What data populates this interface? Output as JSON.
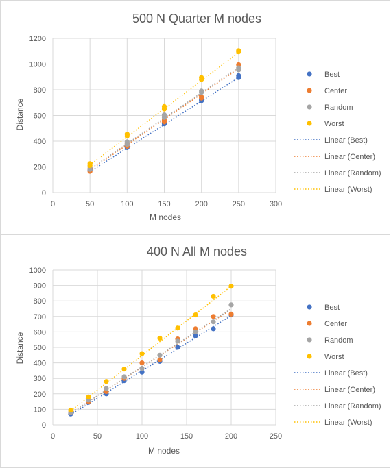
{
  "colors": {
    "best": "#4472c4",
    "center": "#ed7d31",
    "random": "#a5a5a5",
    "worst": "#ffc000",
    "grid": "#d9d9d9",
    "text": "#595959"
  },
  "chart_data": [
    {
      "type": "scatter",
      "title": "500 N Quarter M nodes",
      "xlabel": "M nodes",
      "ylabel": "Distance",
      "xlim": [
        0,
        300
      ],
      "ylim": [
        0,
        1200
      ],
      "xticks": [
        0,
        50,
        100,
        150,
        200,
        250,
        300
      ],
      "yticks": [
        0,
        200,
        400,
        600,
        800,
        1000,
        1200
      ],
      "grid": true,
      "legend_position": "right",
      "legend": [
        "Best",
        "Center",
        "Random",
        "Worst",
        "Linear (Best)",
        "Linear (Center)",
        "Linear (Random)",
        "Linear (Worst)"
      ],
      "series": [
        {
          "name": "Best",
          "color": "best",
          "points": [
            [
              50,
              170
            ],
            [
              50,
              180
            ],
            [
              100,
              350
            ],
            [
              100,
              360
            ],
            [
              150,
              535
            ],
            [
              150,
              545
            ],
            [
              200,
              715
            ],
            [
              200,
              725
            ],
            [
              250,
              895
            ],
            [
              250,
              910
            ]
          ],
          "trend": [
            [
              50,
              163
            ],
            [
              250,
              895
            ]
          ]
        },
        {
          "name": "Center",
          "color": "center",
          "points": [
            [
              50,
              165
            ],
            [
              50,
              185
            ],
            [
              100,
              360
            ],
            [
              100,
              380
            ],
            [
              150,
              550
            ],
            [
              150,
              565
            ],
            [
              200,
              735
            ],
            [
              200,
              745
            ],
            [
              250,
              960
            ],
            [
              250,
              995
            ]
          ],
          "trend": [
            [
              50,
              175
            ],
            [
              250,
              965
            ]
          ]
        },
        {
          "name": "Random",
          "color": "random",
          "points": [
            [
              50,
              180
            ],
            [
              50,
              200
            ],
            [
              100,
              375
            ],
            [
              100,
              395
            ],
            [
              150,
              585
            ],
            [
              150,
              605
            ],
            [
              200,
              780
            ],
            [
              200,
              790
            ],
            [
              250,
              955
            ],
            [
              250,
              970
            ]
          ],
          "trend": [
            [
              50,
              183
            ],
            [
              250,
              975
            ]
          ]
        },
        {
          "name": "Worst",
          "color": "worst",
          "points": [
            [
              50,
              210
            ],
            [
              50,
              225
            ],
            [
              100,
              440
            ],
            [
              100,
              455
            ],
            [
              150,
              650
            ],
            [
              150,
              670
            ],
            [
              200,
              880
            ],
            [
              200,
              895
            ],
            [
              250,
              1095
            ],
            [
              250,
              1105
            ]
          ],
          "trend": [
            [
              50,
              215
            ],
            [
              250,
              1090
            ]
          ]
        }
      ]
    },
    {
      "type": "scatter",
      "title": "400 N All M nodes",
      "xlabel": "M nodes",
      "ylabel": "Distance",
      "xlim": [
        0,
        250
      ],
      "ylim": [
        0,
        1000
      ],
      "xticks": [
        0,
        50,
        100,
        150,
        200,
        250
      ],
      "yticks": [
        0,
        100,
        200,
        300,
        400,
        500,
        600,
        700,
        800,
        900,
        1000
      ],
      "grid": true,
      "legend_position": "right",
      "legend": [
        "Best",
        "Center",
        "Random",
        "Worst",
        "Linear (Best)",
        "Linear (Center)",
        "Linear (Random)",
        "Linear (Worst)"
      ],
      "series": [
        {
          "name": "Best",
          "color": "best",
          "points": [
            [
              20,
              70
            ],
            [
              40,
              145
            ],
            [
              60,
              200
            ],
            [
              80,
              285
            ],
            [
              100,
              340
            ],
            [
              120,
              410
            ],
            [
              140,
              500
            ],
            [
              160,
              575
            ],
            [
              180,
              620
            ],
            [
              200,
              710
            ]
          ],
          "trend": [
            [
              20,
              65
            ],
            [
              200,
              705
            ]
          ]
        },
        {
          "name": "Center",
          "color": "center",
          "points": [
            [
              20,
              80
            ],
            [
              40,
              150
            ],
            [
              60,
              215
            ],
            [
              80,
              300
            ],
            [
              100,
              400
            ],
            [
              120,
              420
            ],
            [
              140,
              555
            ],
            [
              160,
              620
            ],
            [
              180,
              700
            ],
            [
              200,
              715
            ]
          ],
          "trend": [
            [
              20,
              75
            ],
            [
              200,
              745
            ]
          ]
        },
        {
          "name": "Random",
          "color": "random",
          "points": [
            [
              20,
              80
            ],
            [
              40,
              160
            ],
            [
              60,
              235
            ],
            [
              80,
              310
            ],
            [
              100,
              365
            ],
            [
              120,
              450
            ],
            [
              140,
              540
            ],
            [
              160,
              600
            ],
            [
              180,
              665
            ],
            [
              200,
              775
            ]
          ],
          "trend": [
            [
              20,
              75
            ],
            [
              200,
              750
            ]
          ]
        },
        {
          "name": "Worst",
          "color": "worst",
          "points": [
            [
              20,
              95
            ],
            [
              40,
              180
            ],
            [
              60,
              280
            ],
            [
              80,
              360
            ],
            [
              100,
              460
            ],
            [
              120,
              560
            ],
            [
              140,
              625
            ],
            [
              160,
              710
            ],
            [
              180,
              830
            ],
            [
              200,
              895
            ]
          ],
          "trend": [
            [
              20,
              90
            ],
            [
              200,
              895
            ]
          ]
        }
      ]
    }
  ]
}
